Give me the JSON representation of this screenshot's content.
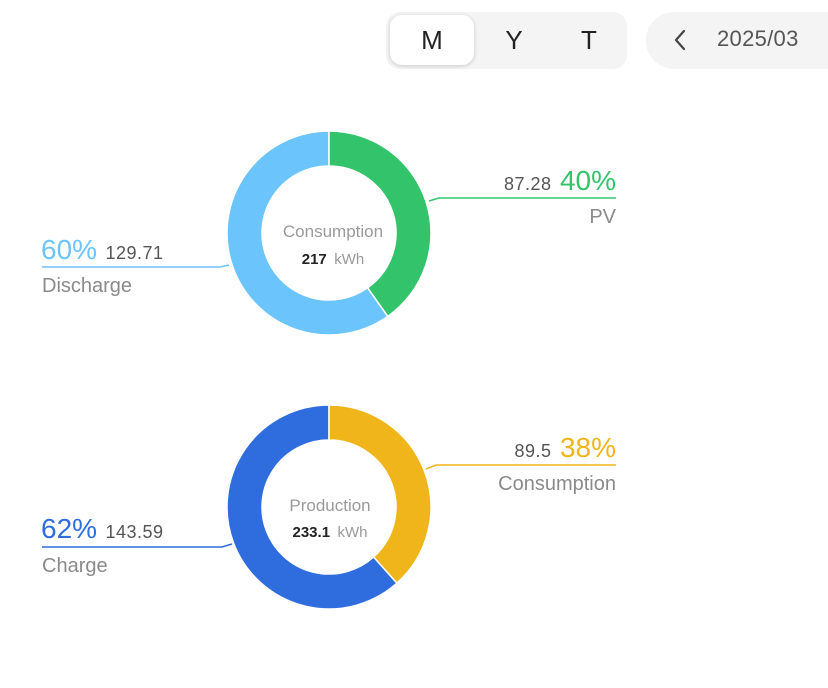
{
  "period_selector": {
    "options": [
      "M",
      "Y",
      "T"
    ],
    "selected": "M"
  },
  "date_nav": {
    "prev_icon": "chevron-left-icon",
    "date": "2025/03"
  },
  "colors": {
    "green": "#33c46b",
    "light_blue": "#6cc4fc",
    "gold": "#f0b51a",
    "blue": "#2f6ddf"
  },
  "chart_data": [
    {
      "type": "pie",
      "center_label": "Consumption",
      "center_value": "217",
      "center_unit": "kWh",
      "slices": [
        {
          "name": "PV",
          "value": "87.28",
          "percent": "40%",
          "color": "#33c46b"
        },
        {
          "name": "Discharge",
          "value": "129.71",
          "percent": "60%",
          "color": "#6cc4fc"
        }
      ]
    },
    {
      "type": "pie",
      "center_label": "Production",
      "center_value": "233.1",
      "center_unit": "kWh",
      "slices": [
        {
          "name": "Consumption",
          "value": "89.5",
          "percent": "38%",
          "color": "#f0b51a"
        },
        {
          "name": "Charge",
          "value": "143.59",
          "percent": "62%",
          "color": "#2f6ddf"
        }
      ]
    }
  ]
}
